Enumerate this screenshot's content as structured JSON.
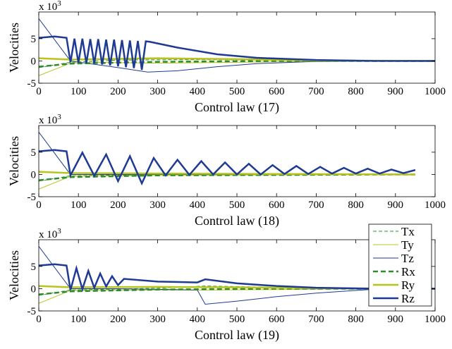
{
  "chart_data": [
    {
      "type": "line",
      "xlabel": "Control law (17)",
      "ylabel": "Velocities",
      "scale_base": "x 10",
      "scale_exponent": "3",
      "xlim": [
        0,
        1000
      ],
      "ylim": [
        -5,
        11
      ],
      "xticks": [
        0,
        100,
        200,
        300,
        400,
        500,
        600,
        700,
        800,
        900,
        1000
      ],
      "yticks": [
        -5,
        0,
        5
      ],
      "series": [
        {
          "color": "#2e8b2e",
          "dash": true,
          "width": 1,
          "x": [
            0,
            80,
            200,
            400,
            600,
            800,
            1000
          ],
          "values": [
            -1.5,
            -0.3,
            0.2,
            0.3,
            0.2,
            0.05,
            0
          ]
        },
        {
          "color": "#b8c41c",
          "dash": false,
          "width": 1,
          "x": [
            0,
            80,
            150,
            300,
            500,
            700,
            1000
          ],
          "values": [
            -3.3,
            -0.5,
            -0.3,
            -0.5,
            -0.3,
            -0.1,
            0
          ]
        },
        {
          "color": "#1f3a93",
          "dash": false,
          "width": 1,
          "x": [
            0,
            80,
            200,
            275,
            350,
            450,
            550,
            700,
            1000
          ],
          "values": [
            9.5,
            0,
            -1.5,
            -2.5,
            -2.2,
            -1.3,
            -0.6,
            -0.1,
            0
          ]
        },
        {
          "color": "#2e8b2e",
          "dash": true,
          "width": 2.5,
          "x": [
            0,
            80,
            300,
            600,
            1000
          ],
          "values": [
            -1.3,
            -0.6,
            -0.2,
            0,
            0
          ]
        },
        {
          "color": "#b8c41c",
          "dash": false,
          "width": 2.5,
          "x": [
            0,
            80,
            300,
            500,
            700,
            1000
          ],
          "values": [
            0.6,
            0.3,
            0.6,
            0.4,
            0.1,
            0
          ]
        },
        {
          "color": "#1f3a93",
          "dash": false,
          "width": 2.5,
          "x": [
            0,
            40,
            70,
            80,
            90,
            100,
            110,
            120,
            130,
            140,
            150,
            160,
            170,
            180,
            190,
            200,
            210,
            220,
            230,
            240,
            250,
            260,
            270,
            280,
            350,
            450,
            550,
            700,
            850,
            1000
          ],
          "values": [
            5.2,
            5.5,
            5.2,
            -0.3,
            5,
            -0.4,
            5,
            -0.5,
            4.9,
            -0.6,
            4.9,
            -0.8,
            4.8,
            -1,
            4.8,
            -1.2,
            4.7,
            -1.4,
            4.6,
            -1.6,
            4.5,
            -2,
            4.4,
            4.3,
            3,
            1.5,
            0.7,
            0.2,
            0,
            0
          ]
        }
      ]
    },
    {
      "type": "line",
      "xlabel": "Control law (18)",
      "ylabel": "Velocities",
      "scale_base": "x 10",
      "scale_exponent": "3",
      "xlim": [
        0,
        1000
      ],
      "ylim": [
        -5,
        11
      ],
      "xticks": [
        0,
        100,
        200,
        300,
        400,
        500,
        600,
        700,
        800,
        900,
        1000
      ],
      "yticks": [
        -5,
        0,
        5
      ],
      "series": [
        {
          "color": "#2e8b2e",
          "dash": true,
          "width": 1,
          "x": [
            0,
            80,
            300,
            600,
            950
          ],
          "values": [
            -1.5,
            -0.3,
            0,
            0,
            0
          ]
        },
        {
          "color": "#b8c41c",
          "dash": false,
          "width": 1,
          "x": [
            0,
            80,
            300,
            600,
            950
          ],
          "values": [
            -3.3,
            -0.4,
            -0.2,
            -0.1,
            0
          ]
        },
        {
          "color": "#1f3a93",
          "dash": false,
          "width": 1,
          "x": [
            0,
            80,
            300,
            950
          ],
          "values": [
            9.5,
            0,
            0,
            0
          ]
        },
        {
          "color": "#2e8b2e",
          "dash": true,
          "width": 2.5,
          "x": [
            0,
            80,
            300,
            950
          ],
          "values": [
            -1.3,
            -0.6,
            -0.2,
            0
          ]
        },
        {
          "color": "#b8c41c",
          "dash": false,
          "width": 2.5,
          "x": [
            0,
            80,
            300,
            600,
            950
          ],
          "values": [
            0.6,
            0.3,
            0.2,
            0.1,
            0
          ]
        },
        {
          "color": "#1f3a93",
          "dash": false,
          "width": 2.5,
          "x": [
            0,
            40,
            70,
            80,
            110,
            140,
            170,
            200,
            230,
            260,
            290,
            320,
            350,
            380,
            410,
            440,
            470,
            500,
            530,
            560,
            590,
            620,
            650,
            680,
            710,
            740,
            770,
            800,
            830,
            860,
            890,
            920,
            950
          ],
          "values": [
            5.2,
            5.5,
            5.2,
            -0.2,
            4.9,
            -0.3,
            4.5,
            -1.5,
            4.1,
            -2,
            3.7,
            -0.2,
            3.3,
            -0.1,
            3,
            0,
            2.7,
            0,
            2.4,
            0,
            2.1,
            0.1,
            1.9,
            0.1,
            1.7,
            0.2,
            1.5,
            0.2,
            1.3,
            0.2,
            1.1,
            0.3,
            1
          ]
        }
      ]
    },
    {
      "type": "line",
      "xlabel": "Control law (19)",
      "ylabel": "Velocities",
      "scale_base": "x 10",
      "scale_exponent": "3",
      "legend": true,
      "xlim": [
        0,
        1000
      ],
      "ylim": [
        -5,
        11
      ],
      "xticks": [
        0,
        100,
        200,
        300,
        400,
        500,
        600,
        700,
        800,
        900,
        1000
      ],
      "yticks": [
        -5,
        0,
        5
      ],
      "series": [
        {
          "name": "Tx",
          "color": "#2e8b2e",
          "dash": true,
          "width": 1,
          "x": [
            0,
            80,
            300,
            420,
            600,
            850,
            1000
          ],
          "values": [
            -1.5,
            -0.3,
            0.1,
            0.6,
            0.3,
            0,
            0
          ]
        },
        {
          "name": "Ty",
          "color": "#b8c41c",
          "dash": false,
          "width": 1,
          "x": [
            0,
            80,
            300,
            420,
            600,
            850,
            1000
          ],
          "values": [
            -3.3,
            -0.4,
            -0.3,
            -0.3,
            -0.2,
            0,
            0
          ]
        },
        {
          "name": "Tz",
          "color": "#1f3a93",
          "dash": false,
          "width": 1,
          "x": [
            0,
            80,
            200,
            400,
            420,
            500,
            600,
            700,
            850,
            1000
          ],
          "values": [
            9.5,
            0,
            0,
            -0.3,
            -3.5,
            -2.8,
            -1.8,
            -1,
            -0.1,
            0
          ]
        },
        {
          "name": "Rx",
          "color": "#2e8b2e",
          "dash": true,
          "width": 2.5,
          "x": [
            0,
            80,
            300,
            600,
            1000
          ],
          "values": [
            -1.3,
            -0.6,
            -0.2,
            0,
            0
          ]
        },
        {
          "name": "Ry",
          "color": "#b8c41c",
          "dash": false,
          "width": 2.5,
          "x": [
            0,
            80,
            300,
            500,
            700,
            1000
          ],
          "values": [
            0.6,
            0.3,
            0.4,
            0.3,
            0.1,
            0
          ]
        },
        {
          "name": "Rz",
          "color": "#1f3a93",
          "dash": false,
          "width": 2.5,
          "x": [
            0,
            40,
            70,
            80,
            95,
            110,
            125,
            140,
            155,
            170,
            185,
            200,
            215,
            300,
            400,
            420,
            500,
            600,
            700,
            850,
            1000
          ],
          "values": [
            5.2,
            5.5,
            5.2,
            -0.3,
            4.6,
            -0.1,
            4,
            0.2,
            3.4,
            0.5,
            2.8,
            0.8,
            2.2,
            1.6,
            1.4,
            2.1,
            1.2,
            0.6,
            0.2,
            0,
            0
          ]
        }
      ]
    }
  ]
}
